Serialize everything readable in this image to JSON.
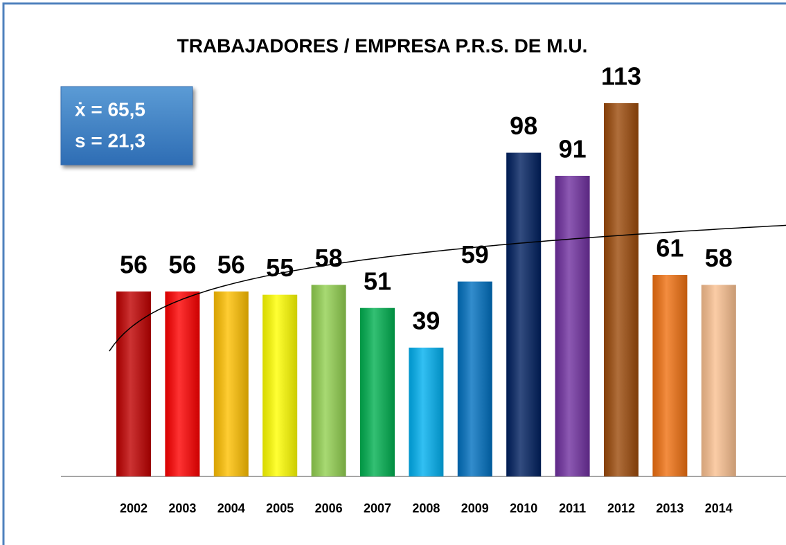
{
  "chart_data": {
    "type": "bar",
    "title": "TRABAJADORES / EMPRESA P.R.S. DE M.U.",
    "annotations": [
      "ẋ = 65,5",
      "s = 21,3"
    ],
    "categories": [
      "2002",
      "2003",
      "2004",
      "2005",
      "2006",
      "2007",
      "2008",
      "2009",
      "2010",
      "2011",
      "2012",
      "2013",
      "2014"
    ],
    "values": [
      56,
      56,
      56,
      55,
      58,
      51,
      39,
      59,
      98,
      91,
      113,
      61,
      58
    ],
    "colors": [
      "#c00000",
      "#ff0000",
      "#ffc000",
      "#ffff00",
      "#92d050",
      "#00b050",
      "#00b0f0",
      "#0070c0",
      "#002060",
      "#7030a0",
      "#9c4a0a",
      "#f07010",
      "#fac090"
    ],
    "trendline": "logarithmic"
  }
}
